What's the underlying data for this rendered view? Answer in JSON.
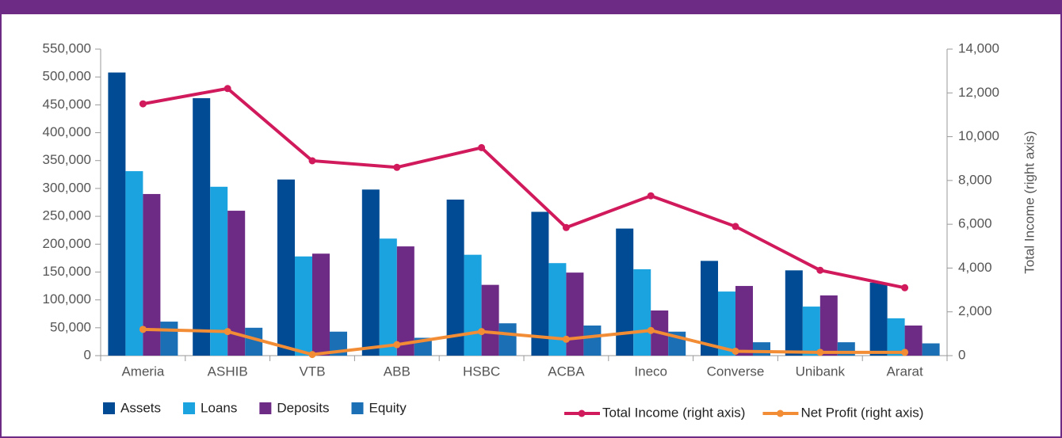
{
  "chart_data": {
    "type": "bar",
    "categories": [
      "Ameria",
      "ASHIB",
      "VTB",
      "ABB",
      "HSBC",
      "ACBA",
      "Ineco",
      "Converse",
      "Unibank",
      "Ararat"
    ],
    "series": [
      {
        "name": "Assets",
        "color": "#004b93",
        "values": [
          508000,
          462000,
          316000,
          298000,
          280000,
          258000,
          228000,
          170000,
          153000,
          131000
        ]
      },
      {
        "name": "Loans",
        "color": "#1ba3e0",
        "values": [
          331000,
          303000,
          178000,
          210000,
          181000,
          166000,
          155000,
          115000,
          88000,
          67000
        ]
      },
      {
        "name": "Deposits",
        "color": "#6e2b86",
        "values": [
          290000,
          260000,
          183000,
          196000,
          127000,
          149000,
          81000,
          125000,
          108000,
          54000
        ]
      },
      {
        "name": "Equity",
        "color": "#1b6fb5",
        "values": [
          61000,
          50000,
          43000,
          32000,
          58000,
          54000,
          43000,
          24000,
          24000,
          22000
        ]
      },
      {
        "name": "Total Income (right axis)",
        "type": "line",
        "axis": "y2",
        "color": "#d11a5c",
        "values": [
          11500,
          12200,
          8900,
          8600,
          9500,
          5850,
          7300,
          5900,
          3900,
          3100
        ]
      },
      {
        "name": "Net Profit (right axis)",
        "type": "line",
        "axis": "y2",
        "color": "#f28c35",
        "values": [
          1200,
          1100,
          50,
          500,
          1100,
          750,
          1150,
          200,
          150,
          150
        ]
      }
    ],
    "y2_label": "Total Income (right axis)",
    "ylim": [
      0,
      550000
    ],
    "yticks": [
      0,
      {
        "value": 50000,
        "label": "50,000"
      },
      {
        "value": 100000,
        "label": "100,000"
      },
      {
        "value": 150000,
        "label": "150,000"
      },
      {
        "value": 200000,
        "label": "200,000"
      },
      {
        "value": 250000,
        "label": "250,000"
      },
      {
        "value": 300000,
        "label": "300,000"
      },
      {
        "value": 350000,
        "label": "350,000"
      },
      {
        "value": 400000,
        "label": "400,000"
      },
      {
        "value": 450000,
        "label": "450,000"
      },
      {
        "value": 500000,
        "label": "500,000"
      },
      {
        "value": 550000,
        "label": "550,000"
      }
    ],
    "y2lim": [
      0,
      14000
    ],
    "y2ticks": [
      0,
      {
        "value": 2000,
        "label": "2,000"
      },
      {
        "value": 4000,
        "label": "4,000"
      },
      {
        "value": 6000,
        "label": "6,000"
      },
      {
        "value": 8000,
        "label": "8,000"
      },
      {
        "value": 10000,
        "label": "10,000"
      },
      {
        "value": 12000,
        "label": "12,000"
      },
      {
        "value": 14000,
        "label": "14,000"
      }
    ],
    "legend": "bottom"
  }
}
